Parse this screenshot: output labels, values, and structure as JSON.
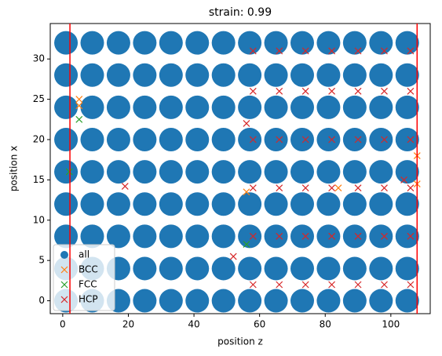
{
  "chart_data": {
    "type": "scatter",
    "title": "strain: 0.99",
    "x_label": "position z",
    "y_label": "position x",
    "xlim": [
      -3.8,
      112
    ],
    "ylim": [
      -1.6,
      34.4
    ],
    "xticks": [
      0,
      20,
      40,
      60,
      80,
      100
    ],
    "yticks": [
      0,
      5,
      10,
      15,
      20,
      25,
      30
    ],
    "vlines": [
      2.2,
      108
    ],
    "vline_color": "#ff0000",
    "legend": "lower left",
    "series": [
      {
        "name": "all",
        "color": "#1f77b4",
        "marker": "circle",
        "x": [
          1,
          9,
          17,
          25,
          33,
          41,
          49,
          57,
          65,
          73,
          81,
          89,
          97,
          105,
          1,
          9,
          17,
          25,
          33,
          41,
          49,
          57,
          65,
          73,
          81,
          89,
          97,
          105,
          1,
          9,
          17,
          25,
          33,
          41,
          49,
          57,
          65,
          73,
          81,
          89,
          97,
          105,
          1,
          9,
          17,
          25,
          33,
          41,
          49,
          57,
          65,
          73,
          81,
          89,
          97,
          105,
          1,
          9,
          17,
          25,
          33,
          41,
          49,
          57,
          65,
          73,
          81,
          89,
          97,
          105,
          1,
          9,
          17,
          25,
          33,
          41,
          49,
          57,
          65,
          73,
          81,
          89,
          97,
          105,
          1,
          9,
          17,
          25,
          33,
          41,
          49,
          57,
          65,
          73,
          81,
          89,
          97,
          105,
          1,
          9,
          17,
          25,
          33,
          41,
          49,
          57,
          65,
          73,
          81,
          89,
          97,
          105,
          1,
          9,
          17,
          25,
          33,
          41,
          49,
          57,
          65,
          73,
          81,
          89,
          97,
          105
        ],
        "values": [
          0,
          0,
          0,
          0,
          0,
          0,
          0,
          0,
          0,
          0,
          0,
          0,
          0,
          0,
          4,
          4,
          4,
          4,
          4,
          4,
          4,
          4,
          4,
          4,
          4,
          4,
          4,
          4,
          8,
          8,
          8,
          8,
          8,
          8,
          8,
          8,
          8,
          8,
          8,
          8,
          8,
          8,
          12,
          12,
          12,
          12,
          12,
          12,
          12,
          12,
          12,
          12,
          12,
          12,
          12,
          12,
          16,
          16,
          16,
          16,
          16,
          16,
          16,
          16,
          16,
          16,
          16,
          16,
          16,
          16,
          20,
          20,
          20,
          20,
          20,
          20,
          20,
          20,
          20,
          20,
          20,
          20,
          20,
          20,
          24,
          24,
          24,
          24,
          24,
          24,
          24,
          24,
          24,
          24,
          24,
          24,
          24,
          24,
          28,
          28,
          28,
          28,
          28,
          28,
          28,
          28,
          28,
          28,
          28,
          28,
          28,
          28,
          32,
          32,
          32,
          32,
          32,
          32,
          32,
          32,
          32,
          32,
          32,
          32,
          32,
          32
        ]
      },
      {
        "name": "BCC",
        "color": "#ff7f0e",
        "marker": "x",
        "x": [
          5,
          5,
          56,
          84,
          108,
          108
        ],
        "values": [
          25,
          24.2,
          13.5,
          14,
          14.5,
          18
        ]
      },
      {
        "name": "FCC",
        "color": "#2ca02c",
        "marker": "x",
        "x": [
          5,
          2,
          56
        ],
        "values": [
          22.5,
          16,
          7
        ]
      },
      {
        "name": "HCP",
        "color": "#d62728",
        "marker": "x",
        "x": [
          58,
          66,
          74,
          82,
          90,
          98,
          106,
          58,
          66,
          74,
          82,
          90,
          98,
          106,
          58,
          66,
          74,
          82,
          90,
          98,
          106,
          58,
          66,
          74,
          82,
          90,
          98,
          106,
          58,
          66,
          74,
          82,
          90,
          98,
          106,
          58,
          66,
          74,
          82,
          90,
          98,
          106,
          19,
          52,
          56,
          104
        ],
        "values": [
          2,
          2,
          2,
          2,
          2,
          2,
          2,
          8,
          8,
          8,
          8,
          8,
          8,
          8,
          14,
          14,
          14,
          14,
          14,
          14,
          14,
          20,
          20,
          20,
          20,
          20,
          20,
          20,
          26,
          26,
          26,
          26,
          26,
          26,
          26,
          31,
          31,
          31,
          31,
          31,
          31,
          31,
          14.2,
          5.5,
          22,
          15
        ]
      }
    ]
  }
}
